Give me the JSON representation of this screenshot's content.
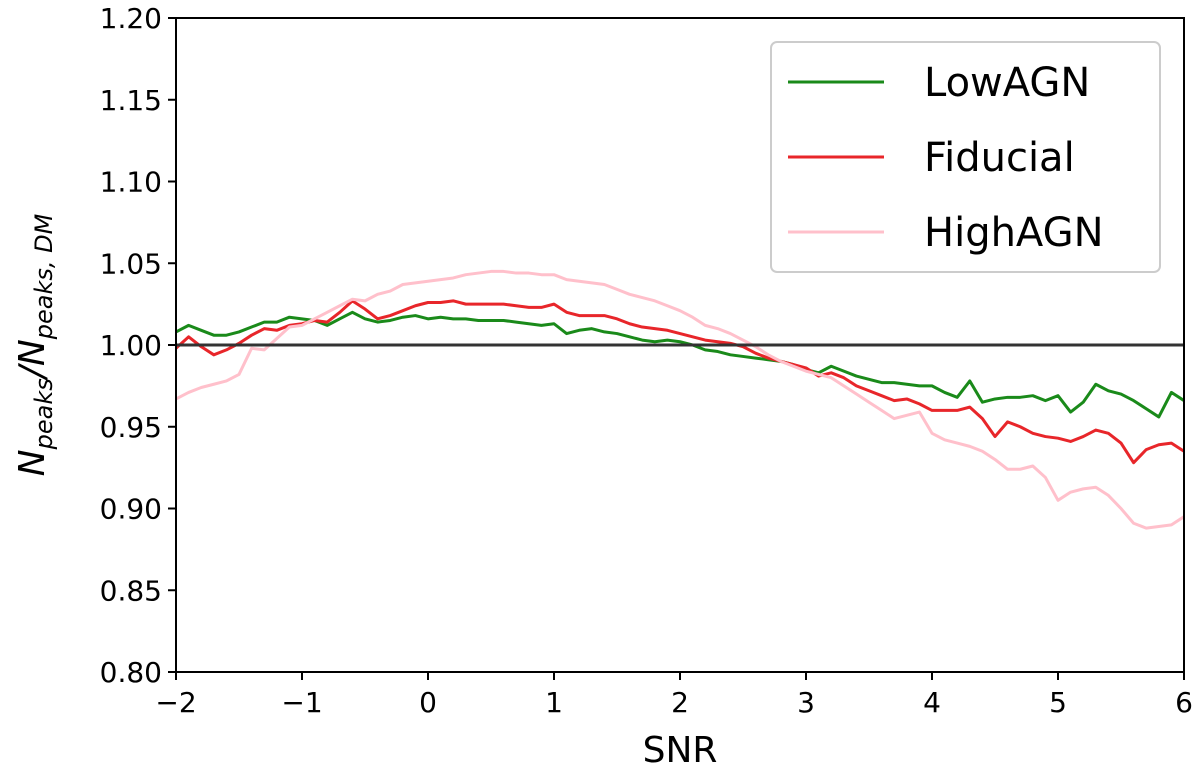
{
  "chart_data": {
    "type": "line",
    "title": "",
    "xlabel": "SNR",
    "ylabel": {
      "main": "N",
      "sub1": "peaks",
      "sep": "/N",
      "sub2": "peaks, DM"
    },
    "xlim": [
      -2,
      6
    ],
    "ylim": [
      0.8,
      1.2
    ],
    "x_ticks": [
      "−2",
      "−1",
      "0",
      "1",
      "2",
      "3",
      "4",
      "5",
      "6"
    ],
    "x_tick_values": [
      -2,
      -1,
      0,
      1,
      2,
      3,
      4,
      5,
      6
    ],
    "y_ticks": [
      "0.80",
      "0.85",
      "0.90",
      "0.95",
      "1.00",
      "1.05",
      "1.10",
      "1.15",
      "1.20"
    ],
    "y_tick_values": [
      0.8,
      0.85,
      0.9,
      0.95,
      1.0,
      1.05,
      1.1,
      1.15,
      1.2
    ],
    "grid": false,
    "legend_position": "top-right",
    "reference_line": {
      "y": 1.0,
      "color": "#333333"
    },
    "x": [
      -2.0,
      -1.9,
      -1.8,
      -1.7,
      -1.6,
      -1.5,
      -1.4,
      -1.3,
      -1.2,
      -1.1,
      -1.0,
      -0.9,
      -0.8,
      -0.7,
      -0.6,
      -0.5,
      -0.4,
      -0.3,
      -0.2,
      -0.1,
      0.0,
      0.1,
      0.2,
      0.3,
      0.4,
      0.5,
      0.6,
      0.7,
      0.8,
      0.9,
      1.0,
      1.1,
      1.2,
      1.3,
      1.4,
      1.5,
      1.6,
      1.7,
      1.8,
      1.9,
      2.0,
      2.1,
      2.2,
      2.3,
      2.4,
      2.5,
      2.6,
      2.7,
      2.8,
      2.9,
      3.0,
      3.1,
      3.2,
      3.3,
      3.4,
      3.5,
      3.6,
      3.7,
      3.8,
      3.9,
      4.0,
      4.1,
      4.2,
      4.3,
      4.4,
      4.5,
      4.6,
      4.7,
      4.8,
      4.9,
      5.0,
      5.1,
      5.2,
      5.3,
      5.4,
      5.5,
      5.6,
      5.7,
      5.8,
      5.9,
      6.0
    ],
    "series": [
      {
        "name": "LowAGN",
        "color": "#1a8a1a",
        "values": [
          1.008,
          1.012,
          1.009,
          1.006,
          1.006,
          1.008,
          1.011,
          1.014,
          1.014,
          1.017,
          1.016,
          1.015,
          1.012,
          1.016,
          1.02,
          1.016,
          1.014,
          1.015,
          1.017,
          1.018,
          1.016,
          1.017,
          1.016,
          1.016,
          1.015,
          1.015,
          1.015,
          1.014,
          1.013,
          1.012,
          1.013,
          1.007,
          1.009,
          1.01,
          1.008,
          1.007,
          1.005,
          1.003,
          1.002,
          1.003,
          1.002,
          1.0,
          0.997,
          0.996,
          0.994,
          0.993,
          0.992,
          0.991,
          0.99,
          0.988,
          0.985,
          0.983,
          0.987,
          0.984,
          0.981,
          0.979,
          0.977,
          0.977,
          0.976,
          0.975,
          0.975,
          0.971,
          0.968,
          0.978,
          0.965,
          0.967,
          0.968,
          0.968,
          0.969,
          0.966,
          0.969,
          0.959,
          0.965,
          0.976,
          0.972,
          0.97,
          0.966,
          0.961,
          0.956,
          0.971,
          0.966
        ]
      },
      {
        "name": "Fiducial",
        "color": "#e8262a",
        "values": [
          0.998,
          1.005,
          0.999,
          0.994,
          0.997,
          1.001,
          1.006,
          1.01,
          1.009,
          1.012,
          1.013,
          1.015,
          1.014,
          1.02,
          1.027,
          1.022,
          1.016,
          1.018,
          1.021,
          1.024,
          1.026,
          1.026,
          1.027,
          1.025,
          1.025,
          1.025,
          1.025,
          1.024,
          1.023,
          1.023,
          1.025,
          1.02,
          1.018,
          1.018,
          1.018,
          1.016,
          1.013,
          1.011,
          1.01,
          1.009,
          1.007,
          1.005,
          1.003,
          1.002,
          1.001,
          0.999,
          0.995,
          0.992,
          0.99,
          0.988,
          0.986,
          0.981,
          0.983,
          0.98,
          0.975,
          0.972,
          0.969,
          0.966,
          0.967,
          0.964,
          0.96,
          0.96,
          0.96,
          0.962,
          0.955,
          0.944,
          0.953,
          0.95,
          0.946,
          0.944,
          0.943,
          0.941,
          0.944,
          0.948,
          0.946,
          0.94,
          0.928,
          0.936,
          0.939,
          0.94,
          0.935
        ]
      },
      {
        "name": "HighAGN",
        "color": "#ffc0cb",
        "values": [
          0.967,
          0.971,
          0.974,
          0.976,
          0.978,
          0.982,
          0.998,
          0.997,
          1.004,
          1.011,
          1.012,
          1.016,
          1.02,
          1.024,
          1.028,
          1.027,
          1.031,
          1.033,
          1.037,
          1.038,
          1.039,
          1.04,
          1.041,
          1.043,
          1.044,
          1.045,
          1.045,
          1.044,
          1.044,
          1.043,
          1.043,
          1.04,
          1.039,
          1.038,
          1.037,
          1.034,
          1.031,
          1.029,
          1.027,
          1.024,
          1.021,
          1.017,
          1.012,
          1.01,
          1.007,
          1.003,
          0.999,
          0.994,
          0.99,
          0.987,
          0.984,
          0.982,
          0.98,
          0.975,
          0.97,
          0.965,
          0.96,
          0.955,
          0.957,
          0.959,
          0.946,
          0.942,
          0.94,
          0.938,
          0.935,
          0.93,
          0.924,
          0.924,
          0.926,
          0.919,
          0.905,
          0.91,
          0.912,
          0.913,
          0.908,
          0.9,
          0.891,
          0.888,
          0.889,
          0.89,
          0.895
        ]
      }
    ]
  }
}
